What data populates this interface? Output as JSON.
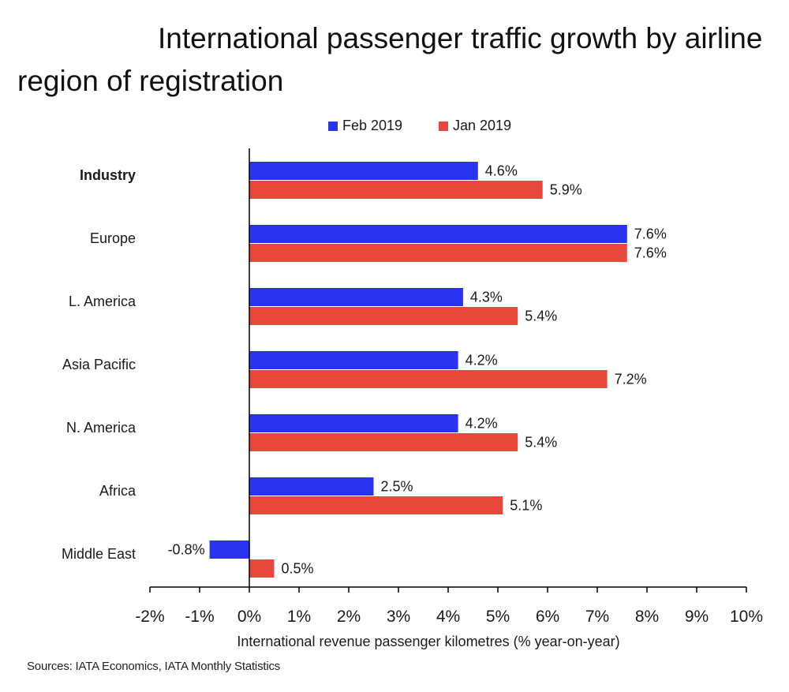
{
  "chart_data": {
    "type": "bar",
    "orientation": "horizontal",
    "title": "International passenger traffic growth by airline region of registration",
    "xlabel": "International revenue passenger kilometres (% year-on-year)",
    "ylabel": "",
    "xlim": [
      -2,
      10
    ],
    "xticks": [
      "-2%",
      "-1%",
      "0%",
      "1%",
      "2%",
      "3%",
      "4%",
      "5%",
      "6%",
      "7%",
      "8%",
      "9%",
      "10%"
    ],
    "categories": [
      "Industry",
      "Europe",
      "L. America",
      "Asia Pacific",
      "N. America",
      "Africa",
      "Middle East"
    ],
    "series": [
      {
        "name": "Feb 2019",
        "color": "#2a34f0",
        "values": [
          4.6,
          7.6,
          4.3,
          4.2,
          4.2,
          2.5,
          -0.8
        ],
        "labels": [
          "4.6%",
          "7.6%",
          "4.3%",
          "4.2%",
          "4.2%",
          "2.5%",
          "-0.8%"
        ]
      },
      {
        "name": "Jan 2019",
        "color": "#e8473b",
        "values": [
          5.9,
          7.6,
          5.4,
          7.2,
          5.4,
          5.1,
          0.5
        ],
        "labels": [
          "5.9%",
          "7.6%",
          "5.4%",
          "7.2%",
          "5.4%",
          "5.1%",
          "0.5%"
        ]
      }
    ],
    "legend_position": "top-center"
  },
  "source": "Sources: IATA Economics, IATA Monthly Statistics"
}
